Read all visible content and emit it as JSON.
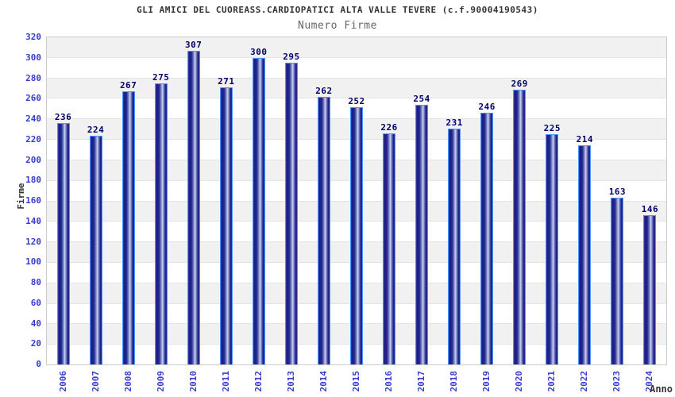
{
  "chart_data": {
    "type": "bar",
    "title": "GLI AMICI DEL CUOREASS.CARDIOPATICI ALTA VALLE TEVERE (c.f.90004190543)",
    "subtitle": "Numero Firme",
    "xlabel": "Anno",
    "ylabel": "Firme",
    "categories": [
      "2006",
      "2007",
      "2008",
      "2009",
      "2010",
      "2011",
      "2012",
      "2013",
      "2014",
      "2015",
      "2016",
      "2017",
      "2018",
      "2019",
      "2020",
      "2021",
      "2022",
      "2023",
      "2024"
    ],
    "values": [
      236,
      224,
      267,
      275,
      307,
      271,
      300,
      295,
      262,
      252,
      226,
      254,
      231,
      246,
      269,
      225,
      214,
      163,
      146
    ],
    "ylim": [
      0,
      320
    ],
    "ytick_step": 20,
    "legend": false,
    "grid": "horizontal-bands-alternating",
    "bar_value_labels_shown": true,
    "colors": {
      "title": "#333333",
      "subtitle": "#666666",
      "axis_label": "#333333",
      "tick_label": "#373ccf",
      "value_label": "#000066",
      "bar_border": "#4d94ff",
      "bar_dark": "#171b84",
      "bar_mid": "#3c42a4",
      "bar_light": "#cdd3ee",
      "band_gray": "#f1f1f2",
      "band_white": "#ffffff",
      "plot_border": "#cccccc"
    }
  }
}
